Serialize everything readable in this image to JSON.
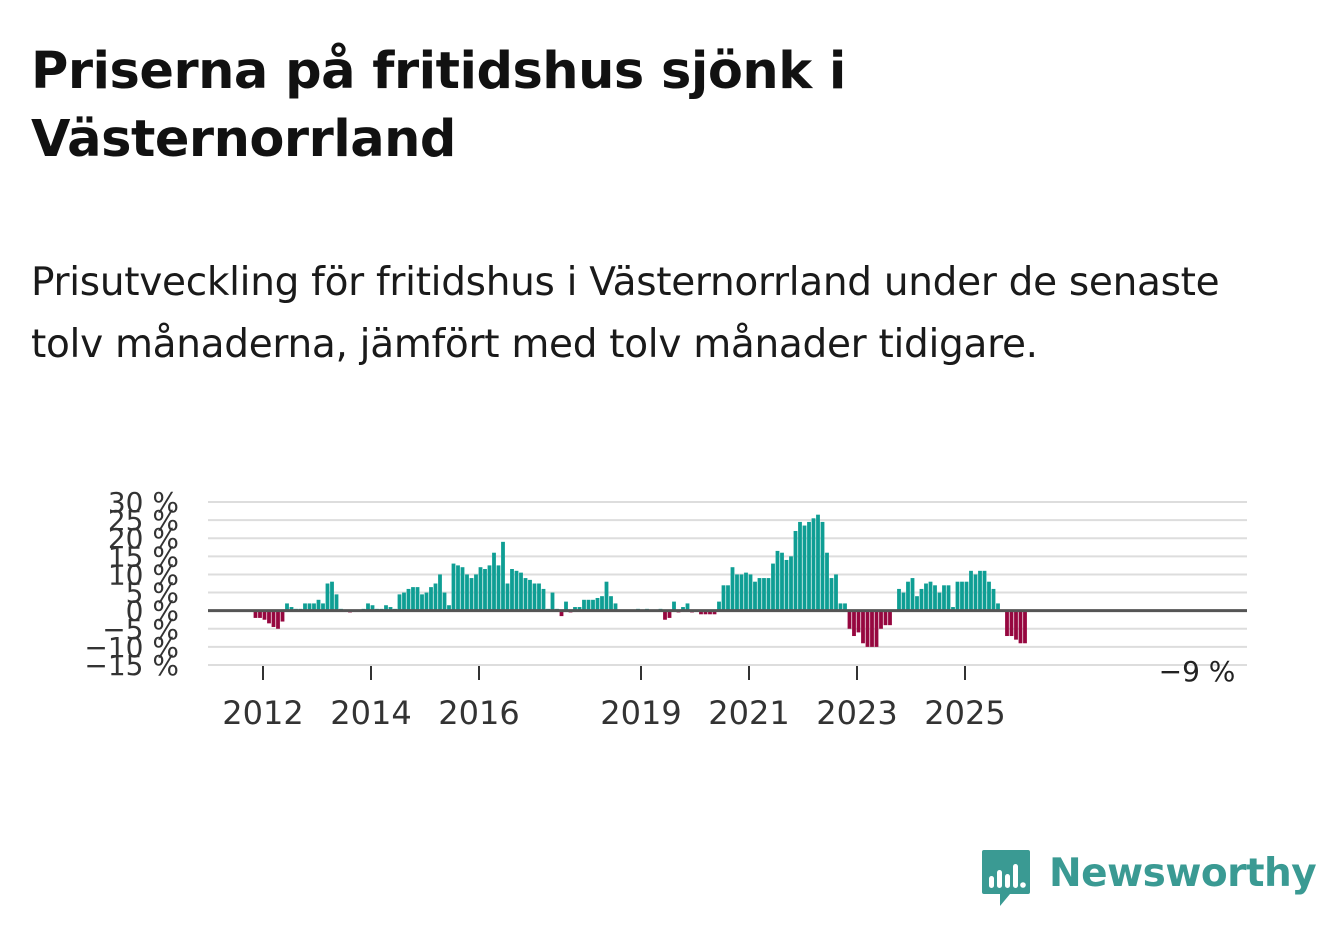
{
  "title": "Priserna på fritidshus sjönk i Västernorrland",
  "subtitle": "Prisutveckling för fritidshus i Västernorrland under de senaste tolv månaderna, jämfört med tolv månader tidigare.",
  "brand": {
    "name": "Newsworthy",
    "icon": "newsworthy-logo-icon"
  },
  "colors": {
    "positive": "#0f9e94",
    "negative": "#96073f",
    "grid": "#dddddd",
    "zero_line": "#555555",
    "tick_text": "#333333",
    "brand": "#3a9a93"
  },
  "chart_data": {
    "type": "bar",
    "title": "",
    "xlabel": "",
    "ylabel": "",
    "ylim": [
      -15,
      30
    ],
    "y_ticks": [
      30,
      25,
      20,
      15,
      10,
      5,
      0,
      -5,
      -10,
      -15
    ],
    "y_tick_labels": [
      "30 %",
      "25 %",
      "20 %",
      "15 %",
      "10 %",
      "5 %",
      "0 %",
      "−5 %",
      "−10 %",
      "−15 %"
    ],
    "start_month": "2011-12",
    "x_tick_labels": [
      {
        "label": "2012",
        "month": "2012-01"
      },
      {
        "label": "2014",
        "month": "2014-01"
      },
      {
        "label": "2016",
        "month": "2016-01"
      },
      {
        "label": "2019",
        "month": "2019-01"
      },
      {
        "label": "2021",
        "month": "2021-01"
      },
      {
        "label": "2023",
        "month": "2023-01"
      },
      {
        "label": "2025",
        "month": "2025-01"
      }
    ],
    "last_value_label": "−9 %",
    "series": [
      {
        "name": "Prisutveckling fritidshus Västernorrland",
        "values": [
          -2,
          -2,
          -2.5,
          -3.5,
          -4.5,
          -5,
          -3,
          2,
          1,
          0.5,
          0.5,
          2,
          2,
          2,
          3,
          2,
          7.5,
          8,
          4.5,
          0.5,
          0,
          -0.5,
          0,
          0,
          0.5,
          2,
          1.5,
          0.5,
          0.5,
          1.5,
          1,
          0.5,
          4.5,
          5,
          6,
          6.5,
          6.5,
          4.5,
          5,
          6.5,
          7.5,
          10,
          5,
          1.5,
          13,
          12.5,
          12,
          10,
          9,
          10,
          12,
          11.5,
          12.5,
          16,
          12.5,
          19,
          7.5,
          11.5,
          11,
          10.5,
          9,
          8.5,
          7.5,
          7.5,
          6,
          0.5,
          5,
          0.5,
          -1.5,
          2.5,
          -0.5,
          1,
          1,
          3,
          3,
          3,
          3.5,
          4,
          8,
          4,
          2,
          0,
          0,
          0,
          0,
          0.5,
          0,
          0.5,
          0,
          0,
          0.5,
          -2.5,
          -2,
          2.5,
          -0.5,
          1,
          2,
          -0.5,
          0,
          -1,
          -1,
          -1,
          -1,
          2.5,
          7,
          7,
          12,
          10,
          10,
          10.5,
          10,
          8,
          9,
          9,
          9,
          13,
          16.5,
          16,
          14,
          15,
          22,
          24.5,
          23.5,
          24.5,
          25.5,
          26.5,
          24.5,
          16,
          9,
          10,
          2,
          2,
          -5,
          -7,
          -6,
          -9,
          -10,
          -10,
          -10,
          -5,
          -4,
          -4,
          0,
          6,
          5,
          8,
          9,
          4,
          6,
          7.5,
          8,
          7,
          5,
          7,
          7,
          1,
          8,
          8,
          8,
          11,
          10,
          11,
          11,
          8,
          6,
          2,
          0,
          -7,
          -7,
          -8,
          -9,
          -9
        ]
      }
    ]
  }
}
